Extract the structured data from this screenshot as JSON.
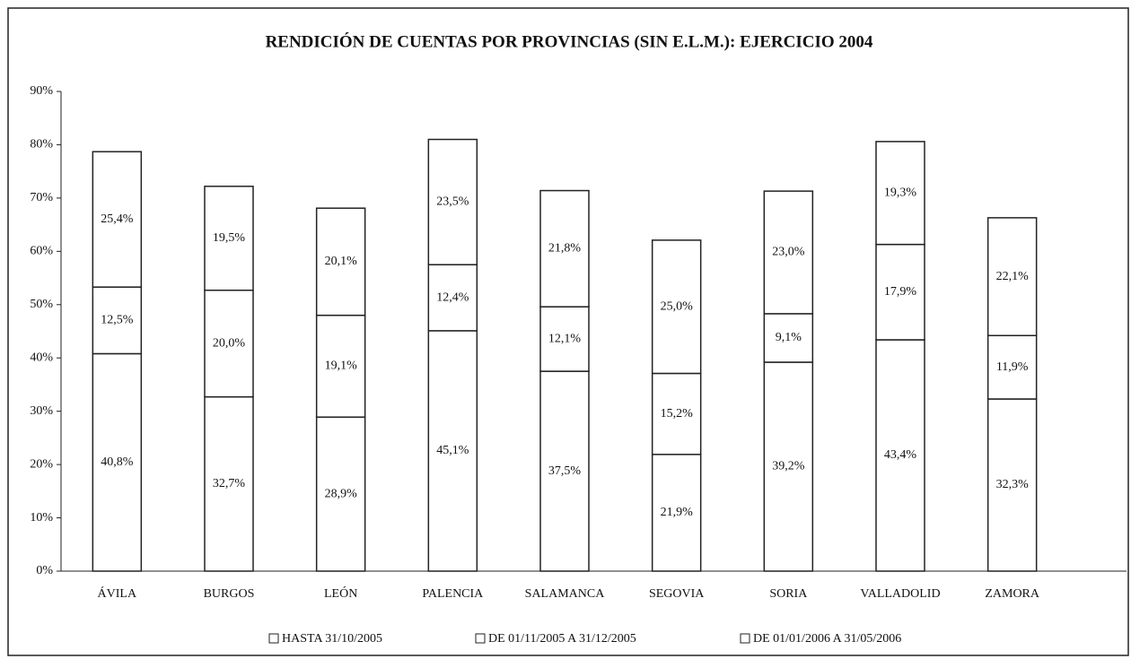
{
  "chart_data": {
    "type": "stacked_bar",
    "title": "RENDICIÓN DE CUENTAS POR PROVINCIAS (SIN E.L.M.): EJERCICIO 2004",
    "categories": [
      "ÁVILA",
      "BURGOS",
      "LEÓN",
      "PALENCIA",
      "SALAMANCA",
      "SEGOVIA",
      "SORIA",
      "VALLADOLID",
      "ZAMORA"
    ],
    "series": [
      {
        "name": "HASTA 31/10/2005",
        "color": "#ffffff",
        "values": [
          40.8,
          32.7,
          28.9,
          45.1,
          37.5,
          21.9,
          39.2,
          43.4,
          32.3
        ],
        "value_labels": [
          "40,8%",
          "32,7%",
          "28,9%",
          "45,1%",
          "37,5%",
          "21,9%",
          "39,2%",
          "43,4%",
          "32,3%"
        ]
      },
      {
        "name": "DE 01/11/2005 A 31/12/2005",
        "color": "#ffffff",
        "values": [
          12.5,
          20.0,
          19.1,
          12.4,
          12.1,
          15.2,
          9.1,
          17.9,
          11.9
        ],
        "value_labels": [
          "12,5%",
          "20,0%",
          "19,1%",
          "12,4%",
          "12,1%",
          "15,2%",
          "9,1%",
          "17,9%",
          "11,9%"
        ]
      },
      {
        "name": "DE 01/01/2006 A 31/05/2006",
        "color": "#ffffff",
        "values": [
          25.4,
          19.5,
          20.1,
          23.5,
          21.8,
          25.0,
          23.0,
          19.3,
          22.1
        ],
        "value_labels": [
          "25,4%",
          "19,5%",
          "20,1%",
          "23,5%",
          "21,8%",
          "25,0%",
          "23,0%",
          "19,3%",
          "22,1%"
        ]
      }
    ],
    "ylim": [
      0,
      90
    ],
    "yticks": [
      {
        "value": 0,
        "label": "0%"
      },
      {
        "value": 10,
        "label": "10%"
      },
      {
        "value": 20,
        "label": "20%"
      },
      {
        "value": 30,
        "label": "30%"
      },
      {
        "value": 40,
        "label": "40%"
      },
      {
        "value": 50,
        "label": "50%"
      },
      {
        "value": 60,
        "label": "60%"
      },
      {
        "value": 70,
        "label": "70%"
      },
      {
        "value": 80,
        "label": "80%"
      },
      {
        "value": 90,
        "label": "90%"
      }
    ]
  }
}
